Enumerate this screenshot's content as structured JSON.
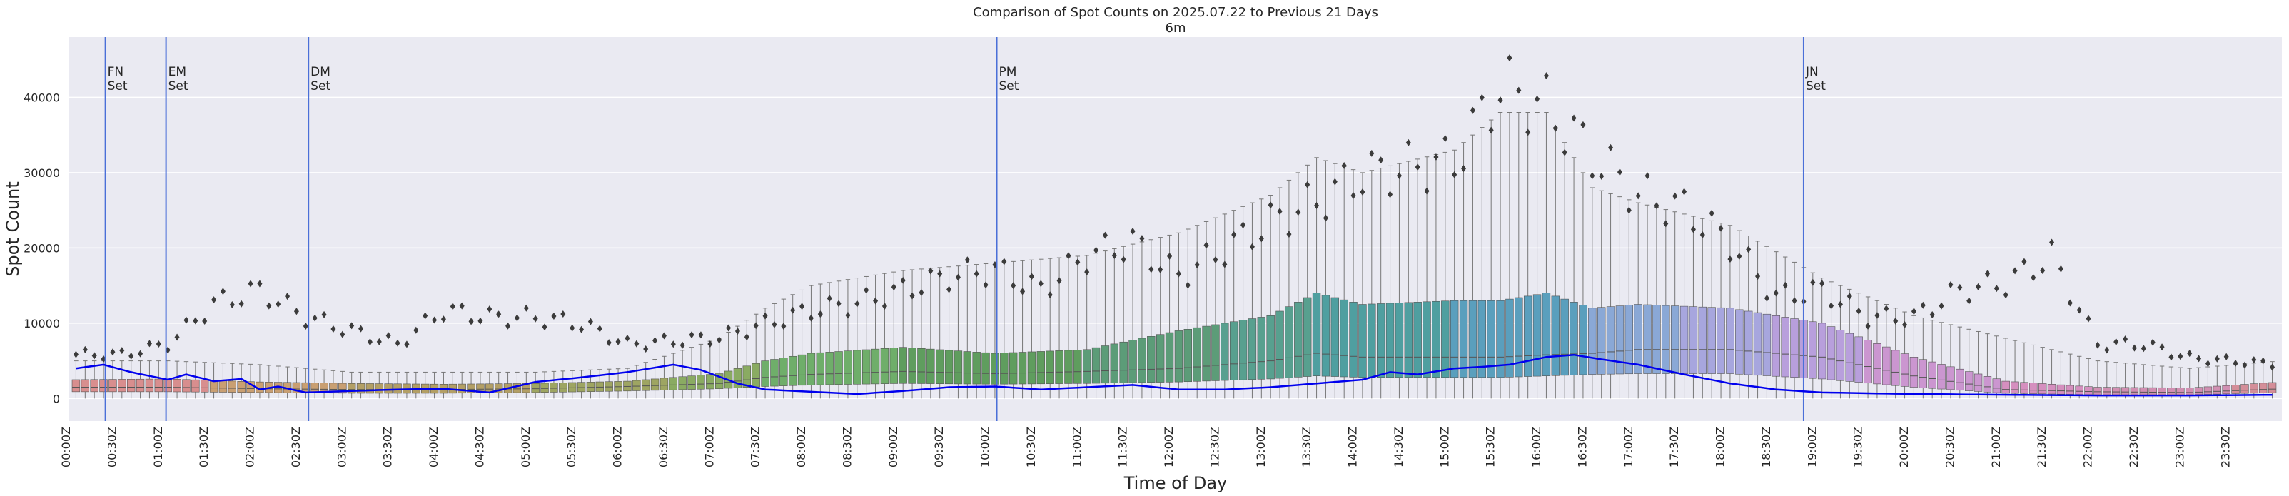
{
  "chart_data": {
    "type": "box",
    "title": "Comparison of Spot Counts on 2025.07.22 to Previous 21 Days",
    "subtitle": "6m",
    "xlabel": "Time of Day",
    "ylabel": "Spot Count",
    "ylim": [
      -3000,
      48000
    ],
    "yticks": [
      0,
      10000,
      20000,
      30000,
      40000
    ],
    "ytick_labels": [
      "0",
      "10000",
      "20000",
      "30000",
      "40000"
    ],
    "xtick_labels": [
      "00:00Z",
      "00:30Z",
      "01:00Z",
      "01:30Z",
      "02:00Z",
      "02:30Z",
      "03:00Z",
      "03:30Z",
      "04:00Z",
      "04:30Z",
      "05:00Z",
      "05:30Z",
      "06:00Z",
      "06:30Z",
      "07:00Z",
      "07:30Z",
      "08:00Z",
      "08:30Z",
      "09:00Z",
      "09:30Z",
      "10:00Z",
      "10:30Z",
      "11:00Z",
      "11:30Z",
      "12:00Z",
      "12:30Z",
      "13:00Z",
      "13:30Z",
      "14:00Z",
      "14:30Z",
      "15:00Z",
      "15:30Z",
      "16:00Z",
      "16:30Z",
      "17:00Z",
      "17:30Z",
      "18:00Z",
      "18:30Z",
      "19:00Z",
      "19:30Z",
      "20:00Z",
      "20:30Z",
      "21:00Z",
      "21:30Z",
      "22:00Z",
      "22:30Z",
      "23:00Z",
      "23:30Z"
    ],
    "bin_minutes": 6,
    "grid": true,
    "annotations": [
      {
        "label": "FN",
        "label2": "Set",
        "time_hours": 0.37
      },
      {
        "label": "EM",
        "label2": "Set",
        "time_hours": 1.03
      },
      {
        "label": "DM",
        "label2": "Set",
        "time_hours": 2.58
      },
      {
        "label": "PM",
        "label2": "Set",
        "time_hours": 10.07
      },
      {
        "label": "JN",
        "label2": "Set",
        "time_hours": 18.85
      }
    ],
    "box_series": {
      "sample_hours": [
        0,
        1,
        2,
        3,
        4,
        5,
        6,
        7,
        7.5,
        8,
        9,
        10,
        11,
        12,
        13,
        13.5,
        14,
        15,
        15.5,
        16,
        16.5,
        17,
        18,
        19,
        20,
        21,
        22,
        23,
        24
      ],
      "median": [
        1500,
        1500,
        1300,
        1200,
        1200,
        1300,
        1600,
        2000,
        2800,
        3200,
        3600,
        3300,
        3600,
        4000,
        5000,
        6000,
        5500,
        5500,
        5500,
        5800,
        6000,
        6500,
        6500,
        5500,
        3000,
        1200,
        900,
        800,
        1300
      ],
      "q1": [
        900,
        900,
        800,
        700,
        700,
        800,
        1000,
        1300,
        1600,
        1800,
        2000,
        1900,
        2000,
        2200,
        2600,
        3000,
        2800,
        2800,
        2800,
        3000,
        3200,
        3300,
        3300,
        2600,
        1500,
        700,
        500,
        500,
        800
      ],
      "q3": [
        2500,
        2600,
        2200,
        2000,
        1900,
        2000,
        2300,
        3300,
        5000,
        6000,
        6800,
        6000,
        6500,
        9000,
        11000,
        14000,
        12500,
        13000,
        13000,
        14000,
        12000,
        12500,
        12000,
        10000,
        5500,
        2300,
        1500,
        1400,
        2200
      ],
      "whisker_high": [
        5000,
        5000,
        4500,
        3500,
        3500,
        3500,
        4000,
        8000,
        12000,
        15000,
        17000,
        18000,
        19000,
        22000,
        27000,
        32000,
        30000,
        33000,
        38000,
        38000,
        28000,
        26000,
        23000,
        16000,
        11000,
        8000,
        5000,
        4000,
        5000
      ],
      "colors": {
        "0": "#d88e8e",
        "1.5": "#c99f72",
        "3": "#b39f65",
        "5": "#9ea562",
        "6.5": "#8aab62",
        "7.5": "#6fae6a",
        "9": "#5f9d5e",
        "11": "#5c9c78",
        "12.5": "#58a08f",
        "13.5": "#4f9fa0",
        "15": "#5a9fbd",
        "16.5": "#8aa8d6",
        "17.5": "#a7a6de",
        "18.5": "#b89fdc",
        "19.5": "#cb96d0",
        "21": "#d58fbf",
        "22": "#d18fb2",
        "23.5": "#d48e99"
      }
    },
    "outliers": {
      "sample_hours": [
        0,
        0.5,
        1,
        1.5,
        2,
        2.5,
        3,
        3.5,
        4,
        4.5,
        5,
        5.5,
        6,
        6.5,
        7,
        7.5,
        8,
        8.5,
        9,
        9.5,
        10,
        10.5,
        11,
        11.5,
        12,
        12.5,
        13,
        13.5,
        14,
        14.5,
        15,
        15.5,
        16,
        16.5,
        17,
        17.5,
        18,
        18.5,
        19,
        19.5,
        20,
        20.5,
        21,
        21.5,
        22,
        22.5,
        23,
        23.5,
        24
      ],
      "values": [
        6500,
        6500,
        8000,
        14000,
        16000,
        12000,
        10000,
        8000,
        13000,
        12000,
        12000,
        11000,
        8000,
        8500,
        9000,
        11000,
        13000,
        14000,
        16000,
        18000,
        19000,
        16000,
        21000,
        23000,
        18000,
        22000,
        26000,
        29000,
        33000,
        34000,
        35000,
        46000,
        43000,
        36000,
        30000,
        28000,
        23000,
        15000,
        16000,
        12000,
        12000,
        16000,
        17000,
        21000,
        8000,
        8000,
        6000,
        5500,
        5000
      ]
    },
    "series": [
      {
        "name": "2025.07.22",
        "color": "#0000ee",
        "x_hours": [
          0,
          0.3,
          0.6,
          1.0,
          1.2,
          1.5,
          1.8,
          2.0,
          2.2,
          2.5,
          3.0,
          3.5,
          4.0,
          4.5,
          5.0,
          5.5,
          6.0,
          6.5,
          6.8,
          7.2,
          7.5,
          8.0,
          8.5,
          9.0,
          9.5,
          10.0,
          10.5,
          11.0,
          11.5,
          12.0,
          12.5,
          13.0,
          13.5,
          14.0,
          14.3,
          14.6,
          15.0,
          15.3,
          15.6,
          16.0,
          16.3,
          16.6,
          17.0,
          17.5,
          18.0,
          18.5,
          19.0,
          20.0,
          21.0,
          22.0,
          23.0,
          24.0
        ],
        "values": [
          4000,
          4500,
          3500,
          2500,
          3200,
          2300,
          2600,
          1200,
          1600,
          800,
          1000,
          1200,
          1300,
          800,
          2200,
          2800,
          3500,
          4500,
          3800,
          2000,
          1200,
          900,
          600,
          1000,
          1500,
          1600,
          1200,
          1500,
          1800,
          1200,
          1200,
          1500,
          2000,
          2500,
          3500,
          3200,
          4000,
          4200,
          4500,
          5500,
          5800,
          5200,
          4500,
          3200,
          2000,
          1200,
          800,
          600,
          500,
          400,
          400,
          500
        ]
      }
    ]
  }
}
